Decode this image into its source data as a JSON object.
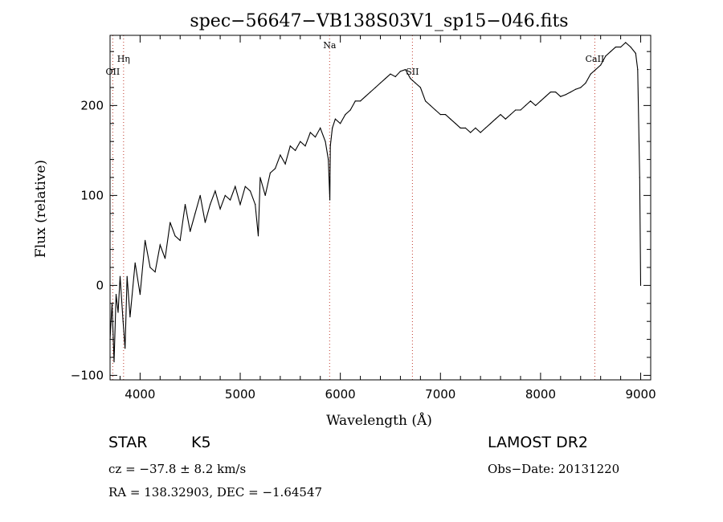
{
  "chart_data": {
    "type": "line",
    "title": "spec−56647−VB138S03V1_sp15−046.fits",
    "xlabel": "Wavelength (Å)",
    "ylabel": "Flux (relative)",
    "xlim": [
      3700,
      9100
    ],
    "ylim": [
      -105,
      278
    ],
    "xticks": [
      4000,
      5000,
      6000,
      7000,
      8000,
      9000
    ],
    "xtick_labels": [
      "4000",
      "5000",
      "6000",
      "7000",
      "8000",
      "9000"
    ],
    "yticks": [
      -100,
      0,
      100,
      200
    ],
    "ytick_labels": [
      "−100",
      "0",
      "100",
      "200"
    ],
    "series": [
      {
        "color": "#000000",
        "x": [
          3700,
          3720,
          3740,
          3760,
          3780,
          3800,
          3830,
          3850,
          3870,
          3900,
          3950,
          4000,
          4050,
          4100,
          4150,
          4200,
          4250,
          4300,
          4350,
          4400,
          4450,
          4500,
          4550,
          4600,
          4650,
          4700,
          4750,
          4800,
          4850,
          4900,
          4950,
          5000,
          5050,
          5100,
          5150,
          5180,
          5200,
          5250,
          5300,
          5350,
          5400,
          5450,
          5500,
          5550,
          5600,
          5650,
          5700,
          5750,
          5800,
          5850,
          5880,
          5895,
          5900,
          5920,
          5950,
          6000,
          6050,
          6100,
          6150,
          6200,
          6250,
          6300,
          6350,
          6400,
          6450,
          6500,
          6550,
          6600,
          6650,
          6700,
          6750,
          6800,
          6850,
          6900,
          6950,
          7000,
          7050,
          7100,
          7150,
          7200,
          7250,
          7300,
          7350,
          7400,
          7450,
          7500,
          7550,
          7600,
          7650,
          7700,
          7750,
          7800,
          7850,
          7900,
          7950,
          8000,
          8050,
          8100,
          8150,
          8200,
          8250,
          8300,
          8350,
          8400,
          8450,
          8500,
          8550,
          8600,
          8650,
          8700,
          8750,
          8800,
          8850,
          8900,
          8950,
          8970,
          8990,
          9000
        ],
        "y": [
          -60,
          -20,
          -85,
          -10,
          -30,
          10,
          -40,
          -70,
          10,
          -35,
          25,
          -10,
          50,
          20,
          15,
          45,
          30,
          70,
          55,
          50,
          90,
          60,
          80,
          100,
          70,
          90,
          105,
          85,
          100,
          95,
          110,
          90,
          110,
          105,
          90,
          55,
          120,
          100,
          125,
          130,
          145,
          135,
          155,
          150,
          160,
          155,
          170,
          165,
          175,
          160,
          140,
          95,
          155,
          175,
          185,
          180,
          190,
          195,
          205,
          205,
          210,
          215,
          220,
          225,
          230,
          235,
          232,
          238,
          240,
          230,
          225,
          220,
          205,
          200,
          195,
          190,
          190,
          185,
          180,
          175,
          175,
          170,
          175,
          170,
          175,
          180,
          185,
          190,
          185,
          190,
          195,
          195,
          200,
          205,
          200,
          205,
          210,
          215,
          215,
          210,
          212,
          215,
          218,
          220,
          225,
          235,
          240,
          245,
          255,
          260,
          265,
          265,
          270,
          265,
          258,
          240,
          120,
          0
        ]
      }
    ],
    "spectral_lines": [
      {
        "label": "OII",
        "x": 3727
      },
      {
        "label": "Hη",
        "x": 3835
      },
      {
        "label": "Na",
        "x": 5893
      },
      {
        "label": "SII",
        "x": 6720
      },
      {
        "label": "CaII",
        "x": 8542
      }
    ],
    "grid": false,
    "legend": "none"
  },
  "info": {
    "object_class": "STAR",
    "subclass": "K5",
    "survey": "LAMOST DR2",
    "redshift": "cz = −37.8 ± 8.2 km/s",
    "obs_date": "Obs−Date: 20131220",
    "coords": "RA = 138.32903, DEC =  −1.64547"
  }
}
